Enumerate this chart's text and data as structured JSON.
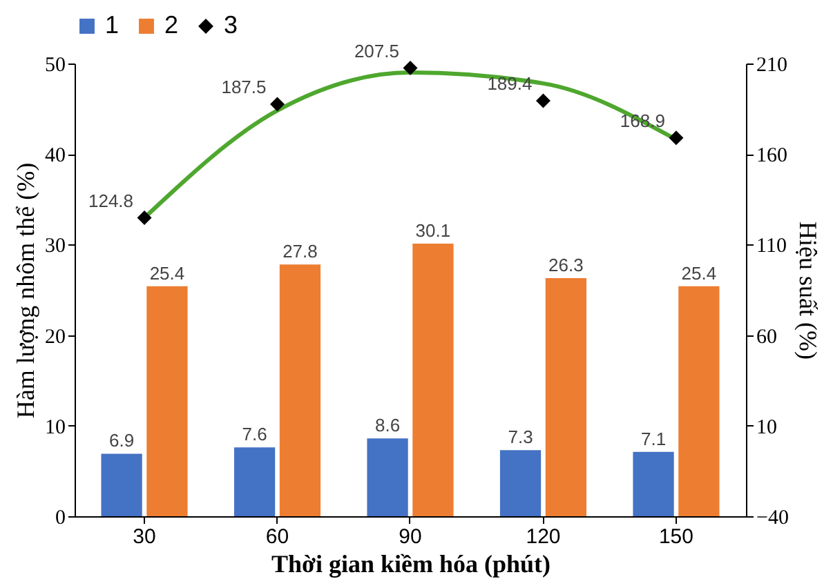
{
  "chart_data": {
    "type": "bar",
    "xlabel": "Thời gian kiềm  hóa (phút)",
    "ylabel": "Hàm lượng nhôm thể (%)",
    "y2label": "Hiệu suất (%)",
    "categories": [
      "30",
      "60",
      "90",
      "120",
      "150"
    ],
    "series": [
      {
        "name": "1",
        "color": "#4472c4",
        "values": [
          6.9,
          7.6,
          8.6,
          7.3,
          7.1
        ],
        "value_labels": [
          "6.9",
          "7.6",
          "8.6",
          "7.3",
          "7.1"
        ]
      },
      {
        "name": "2",
        "color": "#ed7d31",
        "values": [
          25.4,
          27.8,
          30.1,
          26.3,
          25.4
        ],
        "value_labels": [
          "25.4",
          "27.8",
          "30.1",
          "26.3",
          "25.4"
        ]
      },
      {
        "type": "scatter",
        "name": "3",
        "color": "#000000",
        "axis": "y2",
        "marker": "diamond",
        "values": [
          124.8,
          187.5,
          207.5,
          189.4,
          168.9
        ],
        "value_labels": [
          "124.8",
          "187.5",
          "207.5",
          "189.4",
          "168.9"
        ]
      },
      {
        "type": "line",
        "color": "#4ea72e",
        "axis": "y2",
        "values": [
          124.8,
          184,
          205,
          199,
          168
        ]
      }
    ],
    "ylim": [
      0,
      50
    ],
    "yticks": [
      0,
      10,
      20,
      30,
      40,
      50
    ],
    "y2lim": [
      -40,
      210
    ],
    "y2ticks": [
      -40,
      10,
      60,
      110,
      160,
      210
    ],
    "legend": "top",
    "grid": false
  }
}
